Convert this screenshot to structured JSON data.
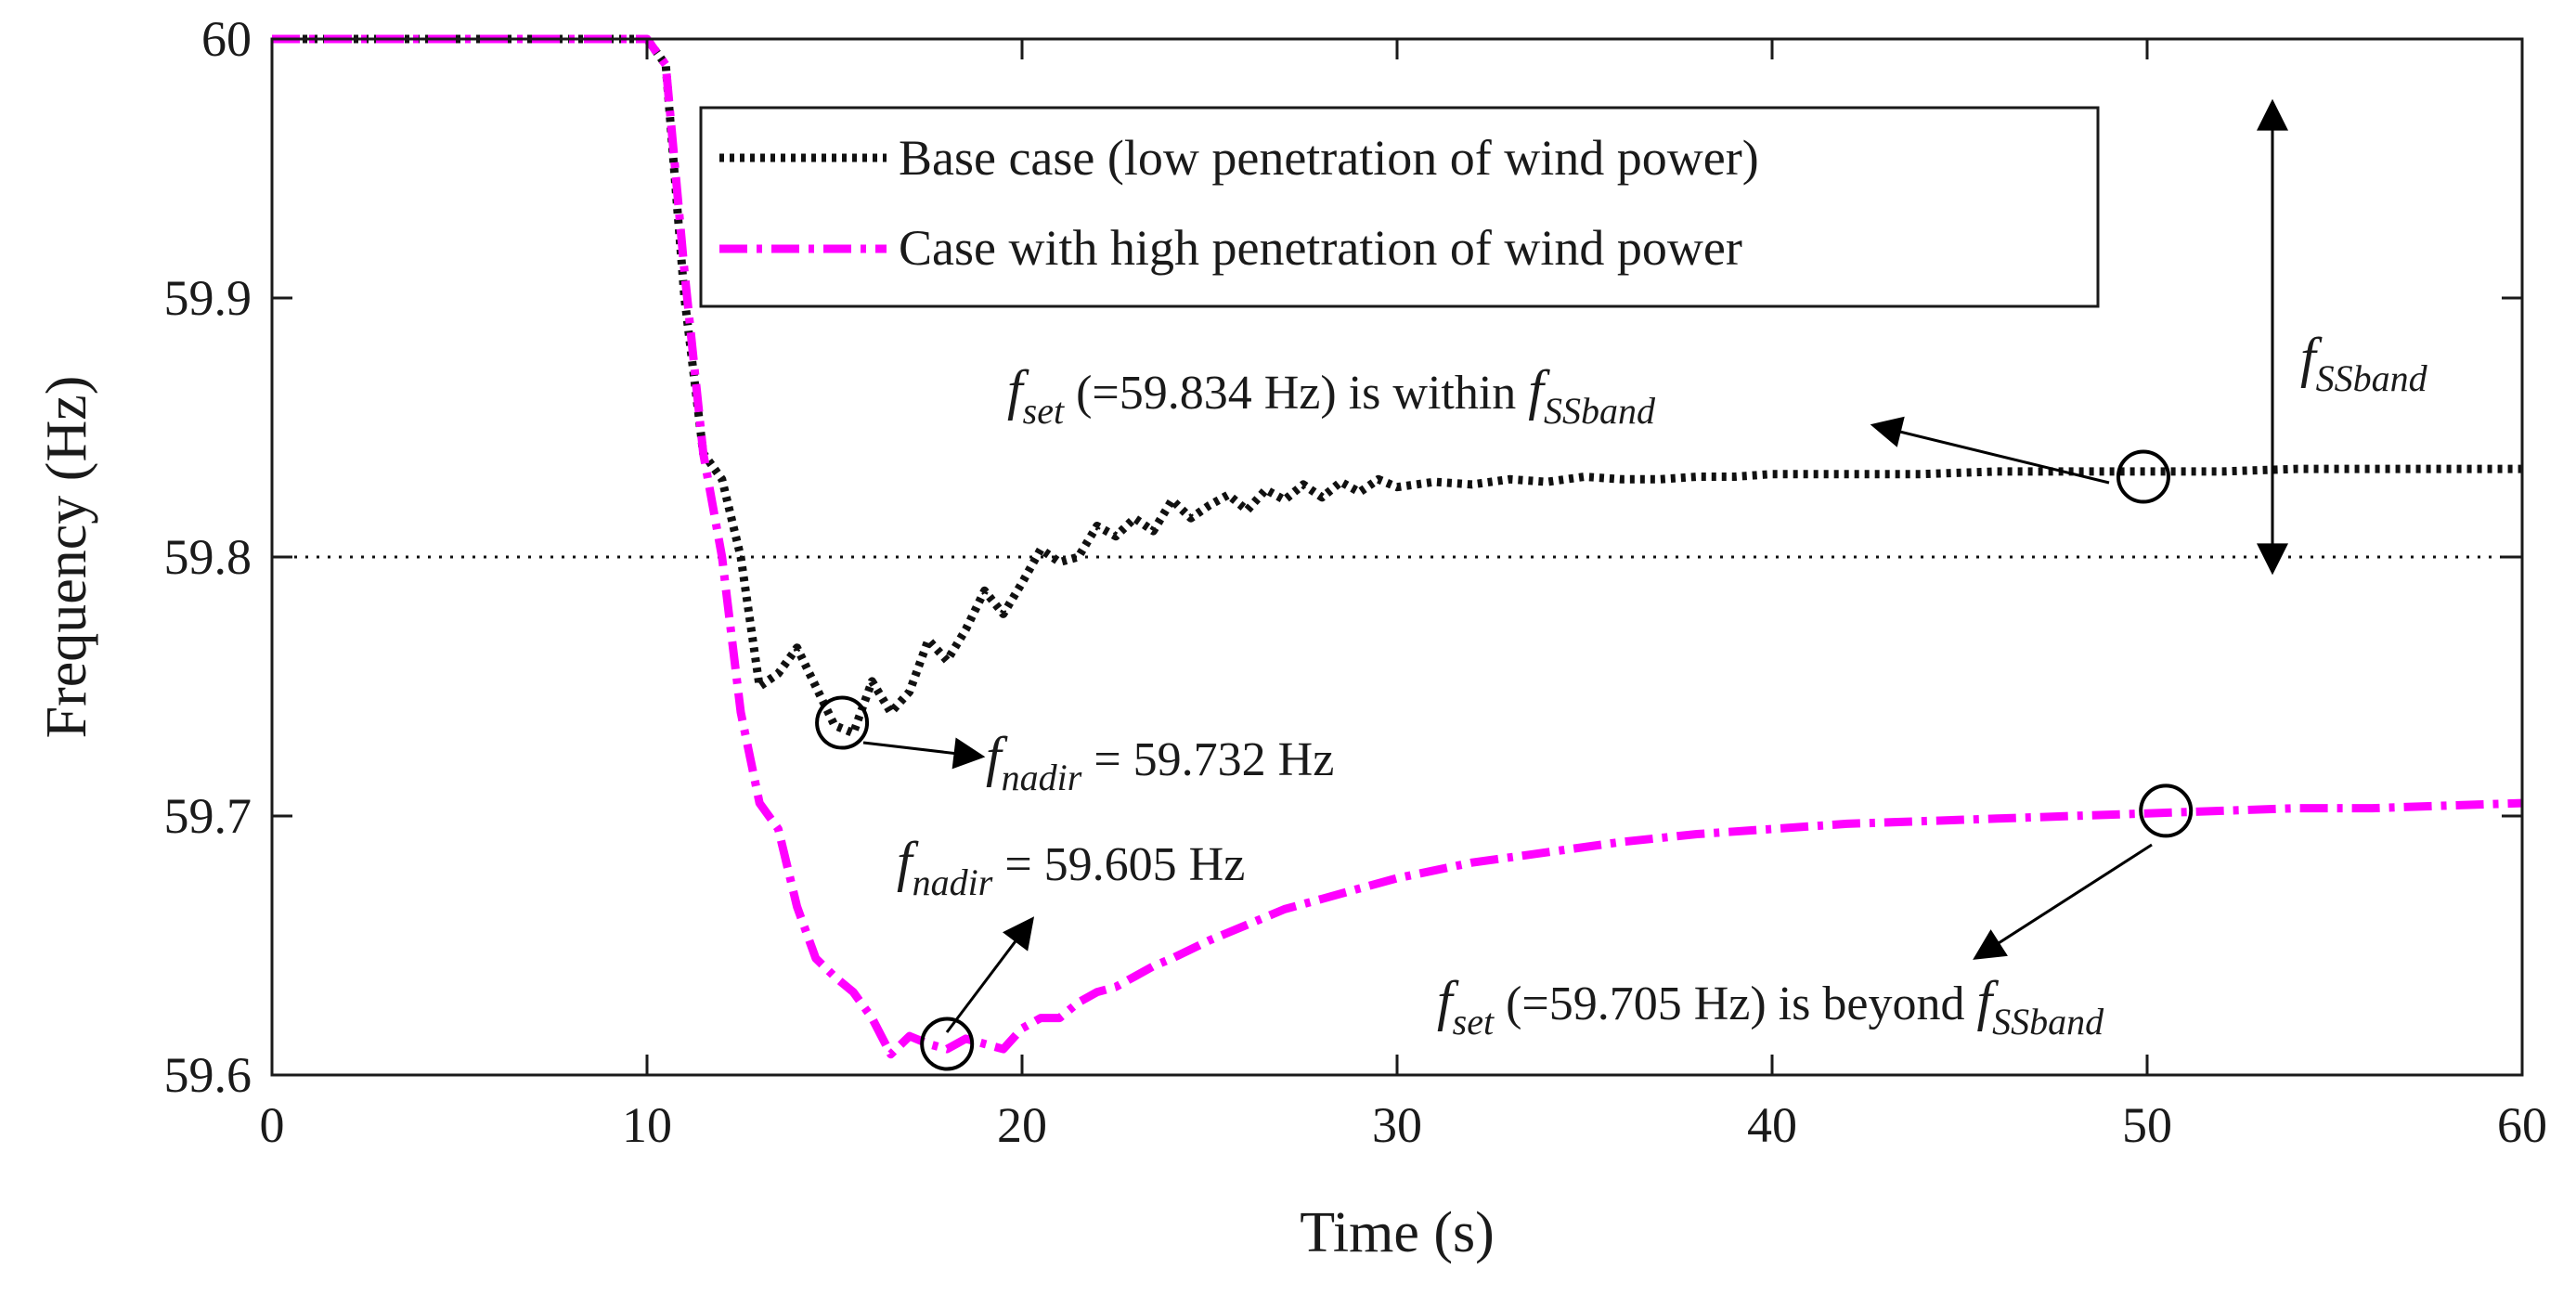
{
  "chart_data": {
    "type": "line",
    "xlabel": "Time (s)",
    "ylabel": "Frequency (Hz)",
    "xlim": [
      0,
      60
    ],
    "ylim": [
      59.6,
      60.0
    ],
    "x_ticks": [
      0,
      10,
      20,
      30,
      40,
      50,
      60
    ],
    "x_tick_labels": [
      "0",
      "10",
      "20",
      "30",
      "40",
      "50",
      "60"
    ],
    "y_ticks": [
      59.6,
      59.7,
      59.8,
      59.9,
      60.0
    ],
    "y_tick_labels": [
      "59.6",
      "59.7",
      "59.8",
      "59.9",
      "60"
    ],
    "reference_lines": [
      {
        "y": 60.0,
        "style": "dotted"
      },
      {
        "y": 59.8,
        "style": "dotted"
      }
    ],
    "legend_position": "top-center",
    "series": [
      {
        "name": "Base case (low penetration of wind power)",
        "color": "#111111",
        "style": "dotted",
        "x": [
          0,
          10,
          10.5,
          11,
          11.5,
          12,
          12.5,
          13,
          13.5,
          14,
          14.5,
          15,
          15.5,
          16,
          16.5,
          17,
          17.5,
          18,
          18.5,
          19,
          19.5,
          20,
          20.5,
          21,
          21.5,
          22,
          22.5,
          23,
          23.5,
          24,
          24.5,
          25,
          25.5,
          26,
          26.5,
          27,
          27.5,
          28,
          28.5,
          29,
          29.5,
          30,
          31,
          32,
          33,
          34,
          35,
          36,
          37,
          38,
          39,
          40,
          42,
          44,
          46,
          48,
          50,
          52,
          54,
          56,
          58,
          60
        ],
        "values": [
          60.0,
          60.0,
          59.99,
          59.9,
          59.84,
          59.83,
          59.8,
          59.75,
          59.755,
          59.765,
          59.75,
          59.735,
          59.732,
          59.752,
          59.74,
          59.748,
          59.768,
          59.76,
          59.772,
          59.787,
          59.778,
          59.79,
          59.803,
          59.798,
          59.8,
          59.812,
          59.808,
          59.815,
          59.81,
          59.822,
          59.815,
          59.82,
          59.824,
          59.818,
          59.826,
          59.822,
          59.828,
          59.823,
          59.829,
          59.825,
          59.83,
          59.827,
          59.829,
          59.828,
          59.83,
          59.829,
          59.831,
          59.83,
          59.83,
          59.831,
          59.831,
          59.832,
          59.832,
          59.832,
          59.833,
          59.833,
          59.833,
          59.833,
          59.834,
          59.834,
          59.834,
          59.834
        ]
      },
      {
        "name": "Case with high penetration of wind power",
        "color": "#ff00ff",
        "style": "dash-dot",
        "x": [
          0,
          10,
          10.5,
          11,
          11.5,
          12,
          12.5,
          13,
          13.5,
          14,
          14.5,
          15,
          15.5,
          16,
          16.5,
          17,
          17.5,
          18,
          18.5,
          19,
          19.5,
          20,
          20.5,
          21,
          21.5,
          22,
          22.5,
          23,
          23.5,
          24,
          25,
          26,
          27,
          28,
          29,
          30,
          32,
          34,
          36,
          38,
          40,
          42,
          44,
          46,
          48,
          50,
          52,
          54,
          56,
          58,
          60
        ],
        "values": [
          60.0,
          60.0,
          59.99,
          59.91,
          59.84,
          59.8,
          59.74,
          59.705,
          59.695,
          59.665,
          59.645,
          59.638,
          59.632,
          59.622,
          59.608,
          59.615,
          59.612,
          59.61,
          59.614,
          59.612,
          59.61,
          59.618,
          59.622,
          59.622,
          59.628,
          59.632,
          59.634,
          59.638,
          59.642,
          59.645,
          59.652,
          59.658,
          59.664,
          59.668,
          59.672,
          59.676,
          59.682,
          59.686,
          59.69,
          59.693,
          59.695,
          59.697,
          59.698,
          59.699,
          59.7,
          59.701,
          59.702,
          59.703,
          59.703,
          59.704,
          59.705
        ]
      }
    ],
    "markers": [
      {
        "x": 15.2,
        "y": 59.736
      },
      {
        "x": 18.0,
        "y": 59.612
      },
      {
        "x": 49.9,
        "y": 59.831
      },
      {
        "x": 50.5,
        "y": 59.702
      }
    ],
    "annotations": {
      "nadir_base": {
        "f": "f",
        "sub": "nadir",
        "text": " = 59.732 Hz"
      },
      "nadir_high": {
        "f": "f",
        "sub": "nadir",
        "text": " = 59.605 Hz"
      },
      "set_base": {
        "f": "f",
        "sub": "set",
        "text": " (=59.834 Hz) is within ",
        "f2": "f",
        "sub2": "SSband"
      },
      "set_high": {
        "f": "f",
        "sub": "set",
        "text": " (=59.705 Hz) is beyond ",
        "f2": "f",
        "sub2": "SSband"
      },
      "band": {
        "f": "f",
        "sub": "SSband"
      }
    }
  }
}
